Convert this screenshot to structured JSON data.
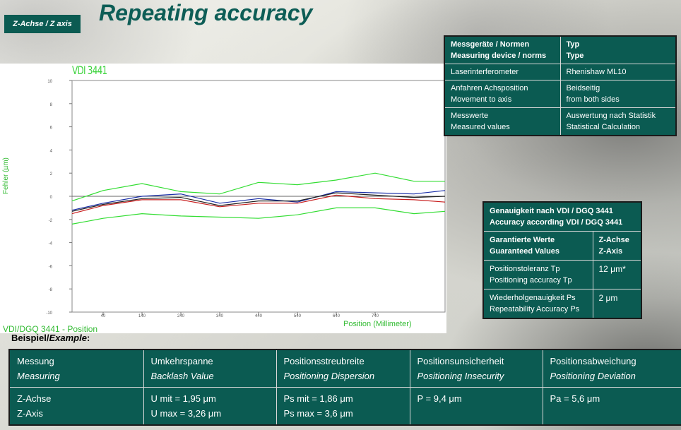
{
  "header": {
    "axis_label": "Z-Achse / Z axis",
    "title": "Repeating accuracy"
  },
  "info_table": {
    "rows": [
      {
        "c1a": "Messgeräte / Normen",
        "c1b": "Measuring device / norms",
        "c2a": "Typ",
        "c2b": "Type"
      },
      {
        "c1a": "Laserinterferometer",
        "c1b": "",
        "c2a": "Rhenishaw ML10",
        "c2b": ""
      },
      {
        "c1a": "Anfahren Achsposition",
        "c1b": "Movement to axis",
        "c2a": "Beidseitig",
        "c2b": "from both sides"
      },
      {
        "c1a": "Messwerte",
        "c1b": "Measured values",
        "c2a": "Auswertung nach Statistik",
        "c2b": "Statistical Calculation"
      }
    ]
  },
  "accuracy_table": {
    "header_a": "Genauigkeit nach VDI / DGQ 3441",
    "header_b": "Accuracy according VDI / DGQ 3441",
    "rows": [
      {
        "la": "Garantierte Werte",
        "lb": "Guaranteed Values",
        "va": "Z-Achse",
        "vb": "Z-Axis"
      },
      {
        "la": "Positionstoleranz Tp",
        "lb": "Positioning accuracy Tp",
        "va": "12 μm*",
        "vb": ""
      },
      {
        "la": "Wiederholgenauigkeit Ps",
        "lb": "Repeatability Accuracy Ps",
        "va": "2 μm",
        "vb": ""
      }
    ]
  },
  "example_label": {
    "de": "Beispiel/",
    "en": "Example",
    "colon": ":"
  },
  "measurement_table": {
    "headers": [
      {
        "de": "Messung",
        "en": "Measuring"
      },
      {
        "de": "Umkehrspanne",
        "en": "Backlash Value"
      },
      {
        "de": "Positionsstreubreite",
        "en": "Positioning Dispersion"
      },
      {
        "de": "Positionsunsicherheit",
        "en": "Positioning Insecurity"
      },
      {
        "de": "Positionsabweichung",
        "en": "Positioning Deviation"
      }
    ],
    "values": [
      {
        "l1": "Z-Achse",
        "l2": "Z-Axis"
      },
      {
        "l1": "U mit = 1,95 μm",
        "l2": "U max = 3,26 μm"
      },
      {
        "l1": "Ps mit = 1,86 μm",
        "l2": "Ps max = 3,6 μm"
      },
      {
        "l1": "P = 9,4 μm",
        "l2": ""
      },
      {
        "l1": "Pa = 5,6 μm",
        "l2": ""
      }
    ]
  },
  "chart_data": {
    "type": "line",
    "title": "VDI 3441",
    "xlabel": "Position (Millimeter)",
    "ylabel": "Fehler (µm)",
    "footer": "VDI/DGQ 3441 - Position",
    "ylim": [
      -10,
      10
    ],
    "xlim": [
      -40,
      920
    ],
    "y_ticks": [
      10,
      8,
      6,
      4,
      2,
      0,
      -2,
      -4,
      -6,
      -8,
      -10
    ],
    "y_tick_labels": [
      "10",
      "8",
      "6",
      "4",
      "2",
      "0",
      "-2",
      "-4",
      "-6",
      "-8",
      "-10"
    ],
    "x_ticks": [
      40,
      140,
      240,
      340,
      440,
      540,
      640,
      740
    ],
    "x_tick_labels": [
      "40",
      "140",
      "240",
      "340",
      "440",
      "540",
      "640",
      "740"
    ],
    "grid": false,
    "colors": {
      "upper": "#33dd33",
      "lower": "#33dd33",
      "forward": "#1a2fa8",
      "backward": "#c81e1e",
      "mean": "#222222",
      "zero": "#666666"
    },
    "x": [
      -40,
      40,
      140,
      240,
      340,
      440,
      540,
      640,
      740,
      840,
      920
    ],
    "series": [
      {
        "key": "upper",
        "values": [
          -0.4,
          0.5,
          1.1,
          0.4,
          0.2,
          1.2,
          1.0,
          1.4,
          2.0,
          1.3,
          1.3
        ]
      },
      {
        "key": "forward",
        "values": [
          -1.2,
          -0.6,
          0.0,
          0.2,
          -0.6,
          -0.2,
          -0.5,
          0.4,
          0.3,
          0.2,
          0.5
        ]
      },
      {
        "key": "mean",
        "values": [
          -1.3,
          -0.7,
          -0.2,
          -0.1,
          -0.8,
          -0.4,
          -0.4,
          0.3,
          0.1,
          -0.1,
          0.0
        ]
      },
      {
        "key": "backward",
        "values": [
          -1.5,
          -0.8,
          -0.3,
          -0.3,
          -0.9,
          -0.6,
          -0.6,
          0.1,
          -0.2,
          -0.3,
          -0.5
        ]
      },
      {
        "key": "lower",
        "values": [
          -2.4,
          -1.9,
          -1.5,
          -1.7,
          -1.8,
          -1.9,
          -1.6,
          -1.0,
          -1.0,
          -1.5,
          -1.3
        ]
      }
    ]
  }
}
